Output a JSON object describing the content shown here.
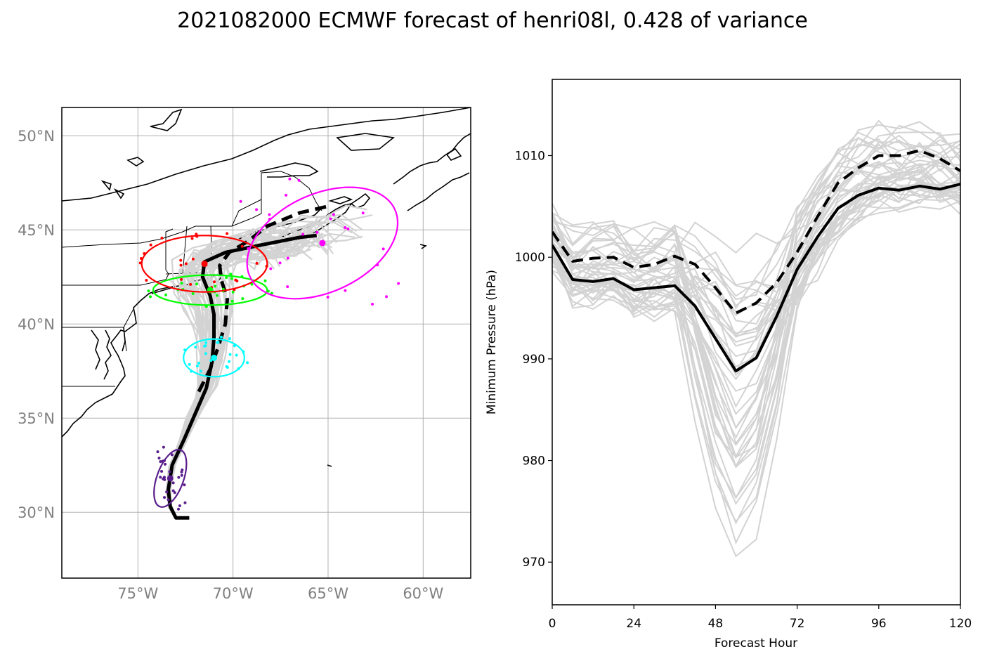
{
  "title": "2021082000 ECMWF forecast of henri08l, 0.428 of variance",
  "colors": {
    "ensemble": "#d3d3d3",
    "mean_track": "#000000",
    "ellipse_h48": "#5a1e8c",
    "ellipse_h72": "#00ffff",
    "ellipse_h96": "#00ff00",
    "ellipse_h108": "#ff0000",
    "ellipse_h120": "#ff00ff"
  },
  "chart_data": [
    {
      "type": "map",
      "xlim": [
        -79,
        -57.5
      ],
      "ylim": [
        26.5,
        51.5
      ],
      "lon_ticks": [
        {
          "value": -75,
          "label": "75°W"
        },
        {
          "value": -70,
          "label": "70°W"
        },
        {
          "value": -65,
          "label": "65°W"
        },
        {
          "value": -60,
          "label": "60°W"
        }
      ],
      "lat_ticks": [
        {
          "value": 30,
          "label": "30°N"
        },
        {
          "value": 35,
          "label": "35°N"
        },
        {
          "value": 40,
          "label": "40°N"
        },
        {
          "value": 45,
          "label": "45°N"
        },
        {
          "value": 50,
          "label": "50°N"
        }
      ],
      "grid": true,
      "mean_track_solid": [
        [
          -72.3,
          29.7
        ],
        [
          -73,
          29.7
        ],
        [
          -73.3,
          30.3
        ],
        [
          -73.4,
          31.2
        ],
        [
          -73.2,
          32.5
        ],
        [
          -72.6,
          33.8
        ],
        [
          -72,
          35.2
        ],
        [
          -71.4,
          36.6
        ],
        [
          -71.1,
          38
        ],
        [
          -71,
          39.3
        ],
        [
          -71,
          40.5
        ],
        [
          -71.2,
          41.5
        ],
        [
          -71.6,
          42.5
        ],
        [
          -71.5,
          43.3
        ],
        [
          -70.4,
          43.8
        ],
        [
          -68.5,
          44.2
        ],
        [
          -66.5,
          44.6
        ],
        [
          -65.6,
          44.7
        ]
      ],
      "mean_track_dashed": [
        [
          -71.8,
          36.4
        ],
        [
          -71.2,
          37.6
        ],
        [
          -70.8,
          38.7
        ],
        [
          -70.4,
          40
        ],
        [
          -70.3,
          41.3
        ],
        [
          -70.6,
          42.3
        ],
        [
          -70.7,
          43.1
        ],
        [
          -70.2,
          43.8
        ],
        [
          -69.2,
          44.4
        ],
        [
          -68.2,
          45.2
        ],
        [
          -66.5,
          45.9
        ],
        [
          -64.8,
          46.3
        ]
      ],
      "ellipses": [
        {
          "hour": 48,
          "lon": -73.3,
          "lat": 31.8,
          "w": 0.7,
          "h": 1.6,
          "angle": 20
        },
        {
          "hour": 72,
          "lon": -71.0,
          "lat": 38.2,
          "w": 1.6,
          "h": 1.0,
          "angle": 0
        },
        {
          "hour": 96,
          "lon": -71.2,
          "lat": 41.8,
          "w": 3.0,
          "h": 0.8,
          "angle": 0
        },
        {
          "hour": 108,
          "lon": -71.5,
          "lat": 43.2,
          "w": 3.3,
          "h": 1.5,
          "angle": 0
        },
        {
          "hour": 120,
          "lon": -65.3,
          "lat": 44.3,
          "w": 4.2,
          "h": 2.6,
          "angle": -25
        }
      ]
    },
    {
      "type": "line",
      "xlabel": "Forecast Hour",
      "ylabel": "Minimum Pressure (hPa)",
      "xlim": [
        0,
        120
      ],
      "ylim": [
        965.8,
        1017.5
      ],
      "xticks": [
        0,
        24,
        48,
        72,
        96,
        120
      ],
      "yticks": [
        970,
        980,
        990,
        1000,
        1010
      ],
      "x": [
        0,
        6,
        12,
        18,
        24,
        30,
        36,
        42,
        48,
        54,
        60,
        66,
        72,
        78,
        84,
        90,
        96,
        102,
        108,
        114,
        120
      ],
      "series": [
        {
          "style": "solid",
          "values": [
            1001.2,
            997.8,
            997.6,
            997.9,
            996.8,
            997.0,
            997.2,
            995.2,
            992.0,
            988.8,
            990.1,
            994.2,
            998.8,
            1002.0,
            1004.8,
            1006.1,
            1006.8,
            1006.6,
            1007.0,
            1006.7,
            1007.2
          ]
        },
        {
          "style": "dashed",
          "values": [
            1002.5,
            999.6,
            999.9,
            1000.0,
            999.0,
            999.3,
            1000.1,
            999.3,
            997.0,
            994.5,
            995.5,
            997.5,
            1000.5,
            1004.0,
            1007.3,
            1008.8,
            1010.0,
            1010.0,
            1010.5,
            1009.7,
            1008.5
          ]
        }
      ]
    }
  ]
}
